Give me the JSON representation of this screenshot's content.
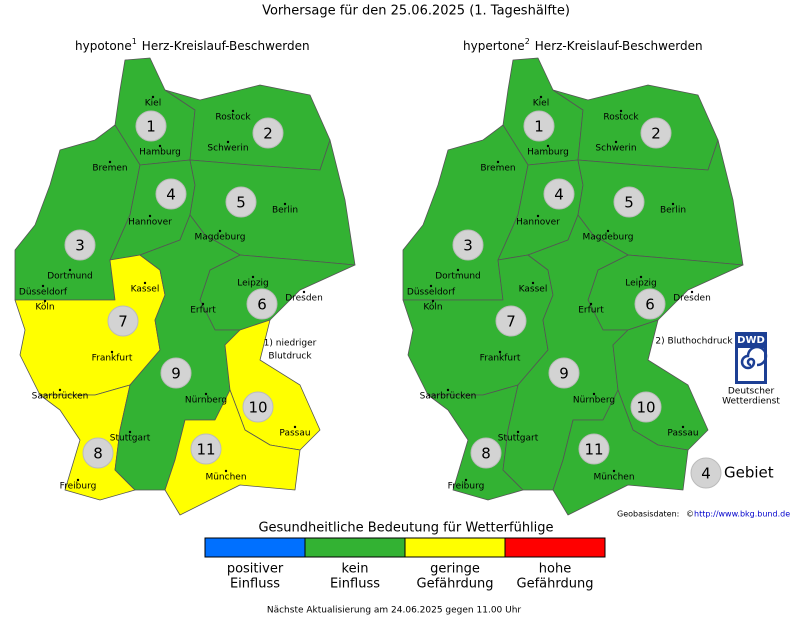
{
  "title": "Vorhersage für den 25.06.2025 (1. Tageshälfte)",
  "maps": [
    {
      "prefix": "hypotone",
      "sup": "1",
      "subject": "Herz-Kreislauf-Beschwerden",
      "regions": [
        {
          "number": 1,
          "color": "#33b233"
        },
        {
          "number": 2,
          "color": "#33b233"
        },
        {
          "number": 3,
          "color": "#33b233"
        },
        {
          "number": 4,
          "color": "#33b233"
        },
        {
          "number": 5,
          "color": "#33b233"
        },
        {
          "number": 6,
          "color": "#33b233"
        },
        {
          "number": 7,
          "color": "#ffff00"
        },
        {
          "number": 8,
          "color": "#ffff00"
        },
        {
          "number": 9,
          "color": "#33b233"
        },
        {
          "number": 10,
          "color": "#ffff00"
        },
        {
          "number": 11,
          "color": "#ffff00"
        }
      ],
      "footnote": [
        "1) niedriger",
        "Blutdruck"
      ]
    },
    {
      "prefix": "hypertone",
      "sup": "2",
      "subject": "Herz-Kreislauf-Beschwerden",
      "regions": [
        {
          "number": 1,
          "color": "#33b233"
        },
        {
          "number": 2,
          "color": "#33b233"
        },
        {
          "number": 3,
          "color": "#33b233"
        },
        {
          "number": 4,
          "color": "#33b233"
        },
        {
          "number": 5,
          "color": "#33b233"
        },
        {
          "number": 6,
          "color": "#33b233"
        },
        {
          "number": 7,
          "color": "#33b233"
        },
        {
          "number": 8,
          "color": "#33b233"
        },
        {
          "number": 9,
          "color": "#33b233"
        },
        {
          "number": 10,
          "color": "#33b233"
        },
        {
          "number": 11,
          "color": "#33b233"
        }
      ],
      "footnote": [
        "2) Bluthochdruck"
      ]
    }
  ],
  "cities": [
    "Kiel",
    "Rostock",
    "Hamburg",
    "Schwerin",
    "Bremen",
    "Berlin",
    "Hannover",
    "Magdeburg",
    "Dortmund",
    "Düsseldorf",
    "Köln",
    "Kassel",
    "Leipzig",
    "Dresden",
    "Erfurt",
    "Frankfurt",
    "Saarbrücken",
    "Nürnberg",
    "Stuttgart",
    "Passau",
    "Freiburg",
    "München"
  ],
  "logo": {
    "abbr": "DWD",
    "lines": [
      "Deutscher",
      "Wetterdienst"
    ]
  },
  "key": {
    "number": 4,
    "label": "Gebiet"
  },
  "credit": {
    "label": "Geobasisdaten:",
    "symbol": "©",
    "url": "http://www.bkg.bund.de"
  },
  "legend": {
    "title": "Gesundheitliche Bedeutung für Wetterfühlige",
    "items": [
      {
        "color": "#0070ff",
        "label": [
          "positiver",
          "Einfluss"
        ]
      },
      {
        "color": "#33b233",
        "label": [
          "kein",
          "Einfluss"
        ]
      },
      {
        "color": "#ffff00",
        "label": [
          "geringe",
          "Gefährdung"
        ]
      },
      {
        "color": "#ff0000",
        "label": [
          "hohe",
          "Gefährdung"
        ]
      }
    ]
  },
  "footer": "Nächste Aktualisierung am 24.06.2025 gegen 11.00 Uhr"
}
